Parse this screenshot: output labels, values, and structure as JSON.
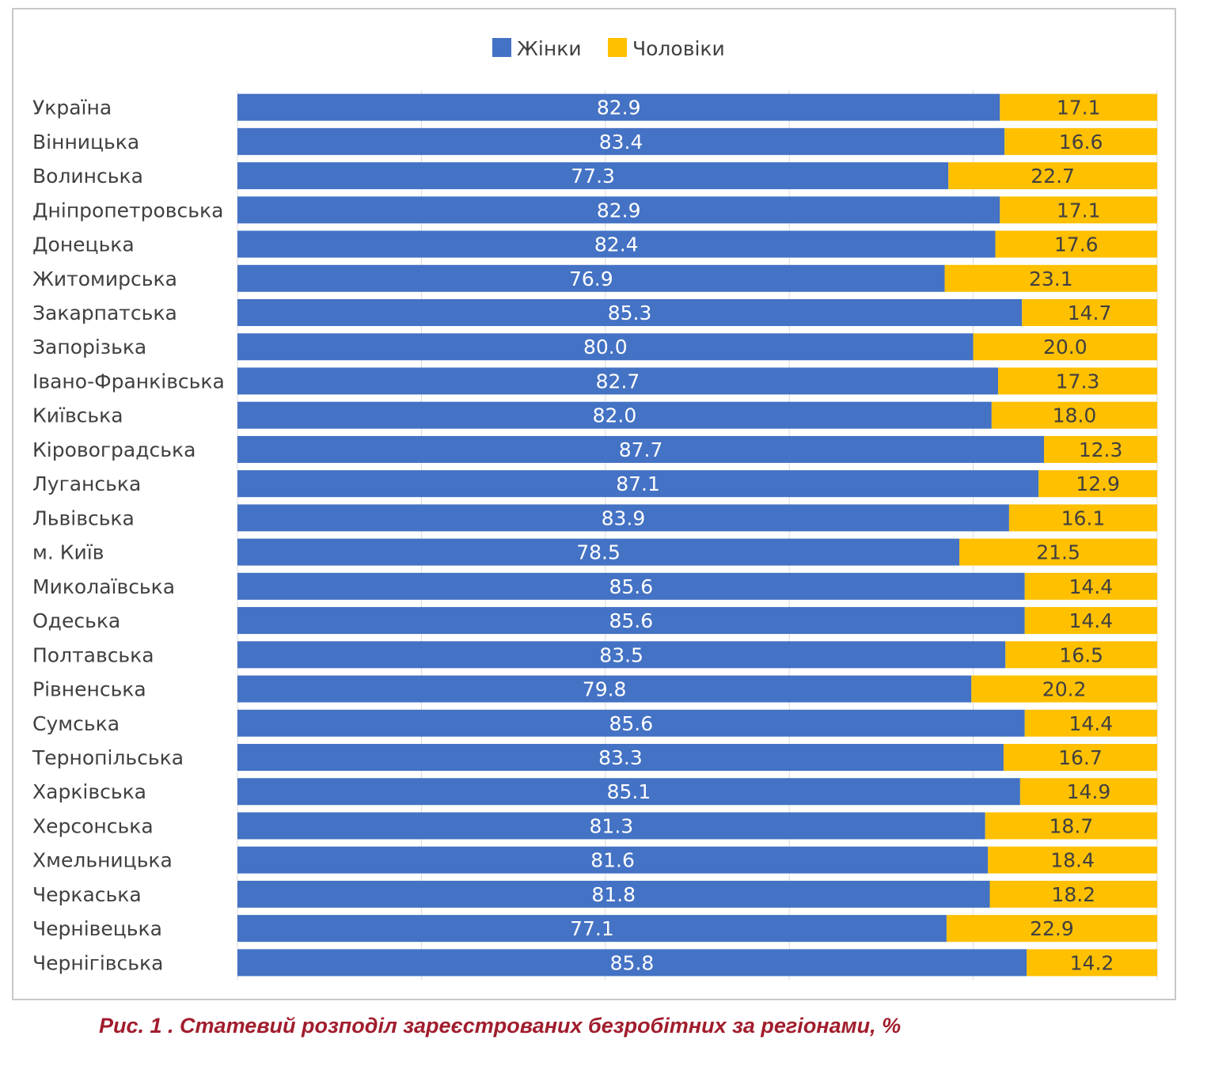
{
  "caption": "Рис. 1 . Статевий розподіл зареєстрованих безробітних за регіонами, %",
  "chart_data": {
    "type": "bar",
    "orientation": "horizontal",
    "stacked": true,
    "title": "",
    "xlabel": "",
    "ylabel": "",
    "xlim": [
      0,
      100
    ],
    "grid": true,
    "legend_position": "top",
    "categories": [
      "Україна",
      "Вінницька",
      "Волинська",
      "Дніпропетровська",
      "Донецька",
      "Житомирська",
      "Закарпатська",
      "Запорізька",
      "Івано-Франківська",
      "Київська",
      "Кіровоградська",
      "Луганська",
      "Львівська",
      "м. Київ",
      "Миколаївська",
      "Одеська",
      "Полтавська",
      "Рівненська",
      "Сумська",
      "Тернопільська",
      "Харківська",
      "Херсонська",
      "Хмельницька",
      "Черкаська",
      "Чернівецька",
      "Чернігівська"
    ],
    "series": [
      {
        "name": "Жінки",
        "color": "#4472c4",
        "labels": [
          "82.9",
          "83.4",
          "77.3",
          "82.9",
          "82.4",
          "76.9",
          "85.3",
          "80.0",
          "82.7",
          "82.0",
          "87.7",
          "87.1",
          "83.9",
          "78.5",
          "85.6",
          "85.6",
          "83.5",
          "79.8",
          "85.6",
          "83.3",
          "85.1",
          "81.3",
          "81.6",
          "81.8",
          "77.1",
          "85.8"
        ],
        "values": [
          82.9,
          83.4,
          77.3,
          82.9,
          82.4,
          76.9,
          85.3,
          80.0,
          82.7,
          82.0,
          87.7,
          87.1,
          83.9,
          78.5,
          85.6,
          85.6,
          83.5,
          79.8,
          85.6,
          83.3,
          85.1,
          81.3,
          81.6,
          81.8,
          77.1,
          85.8
        ]
      },
      {
        "name": "Чоловіки",
        "color": "#ffc000",
        "labels": [
          "17.1",
          "16.6",
          "22.7",
          "17.1",
          "17.6",
          "23.1",
          "14.7",
          "20.0",
          "17.3",
          "18.0",
          "12.3",
          "12.9",
          "16.1",
          "21.5",
          "14.4",
          "14.4",
          "16.5",
          "20.2",
          "14.4",
          "16.7",
          "14.9",
          "18.7",
          "18.4",
          "18.2",
          "22.9",
          "14.2"
        ],
        "values": [
          17.1,
          16.6,
          22.7,
          17.1,
          17.6,
          23.1,
          14.7,
          20.0,
          17.3,
          18.0,
          12.3,
          12.9,
          16.1,
          21.5,
          14.4,
          14.4,
          16.5,
          20.2,
          14.4,
          16.7,
          14.9,
          18.7,
          18.4,
          18.2,
          22.9,
          14.2
        ]
      }
    ]
  }
}
